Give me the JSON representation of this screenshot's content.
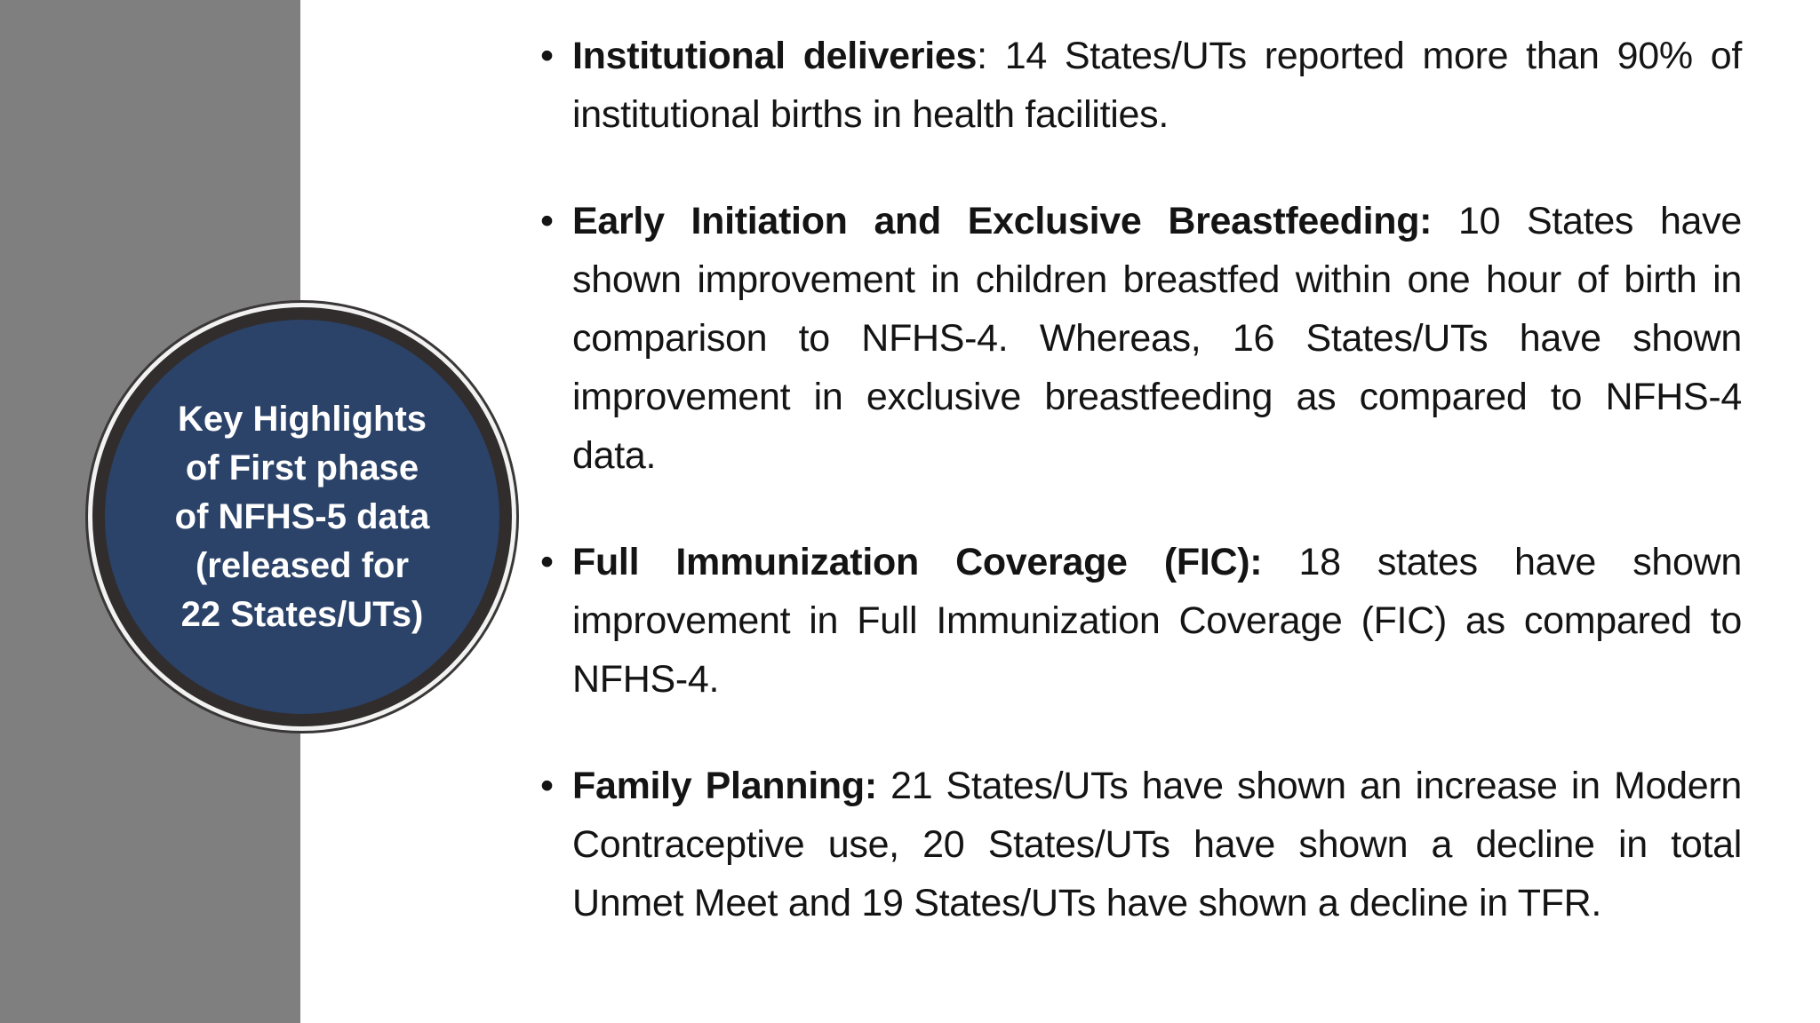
{
  "slide": {
    "bullet_char": "•",
    "circle": {
      "lines": [
        "Key Highlights",
        "of First phase",
        "of NFHS-5 data",
        "(released for",
        "22 States/UTs)"
      ]
    },
    "bullets": [
      {
        "lead": "Institutional deliveries",
        "rest": ": 14 States/UTs reported more than 90% of institutional births in health facilities."
      },
      {
        "lead": "Early Initiation and Exclusive Breastfeeding:",
        "rest": " 10 States have shown improvement in children breastfed within one hour of birth in comparison to NFHS-4. Whereas, 16 States/UTs have shown improvement in exclusive breastfeeding as compared to NFHS-4 data."
      },
      {
        "lead": "Full Immunization Coverage (FIC):",
        "rest": " 18 states have shown improvement in Full Immunization Coverage (FIC) as compared to NFHS-4."
      },
      {
        "lead": "Family Planning:",
        "rest": " 21 States/UTs have shown an increase in Modern Contraceptive use, 20 States/UTs have shown a decline in total Unmet Meet and 19 States/UTs have shown a decline in TFR."
      }
    ],
    "colors": {
      "sidebar_gray": "#7f7f7f",
      "circle_fill": "#2b4269",
      "circle_ring_dark": "#312d2d",
      "circle_ring_light": "#f2f2f2",
      "body_text": "#141414",
      "circle_text": "#ffffff",
      "background": "#ffffff"
    }
  }
}
